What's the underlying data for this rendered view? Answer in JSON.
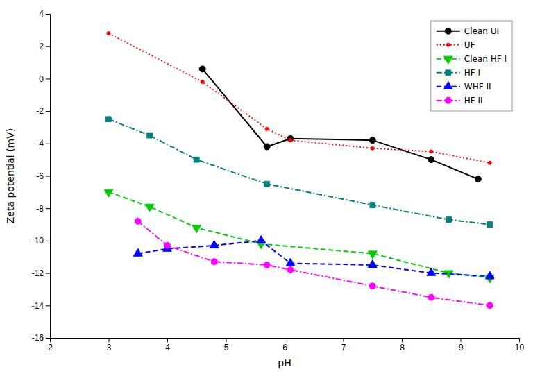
{
  "chart_data": {
    "type": "line",
    "xlabel": "pH",
    "ylabel": "Zeta potential (mV)",
    "series": [
      {
        "name": "Clean UF",
        "color": "black",
        "marker": "circle",
        "line_style": "solid",
        "x": [
          4.6,
          5.7,
          6.1,
          7.5,
          8.5,
          9.3
        ],
        "values": [
          0.6,
          -4.2,
          -3.7,
          -3.8,
          -5.0,
          -6.2
        ]
      },
      {
        "name": "UF",
        "color": "red",
        "marker": "point",
        "line_style": "dotted",
        "x": [
          3.0,
          4.6,
          5.7,
          6.1,
          7.5,
          8.5,
          9.5
        ],
        "values": [
          2.8,
          -0.2,
          -3.1,
          -3.8,
          -4.3,
          -4.5,
          -5.2
        ]
      },
      {
        "name": "Clean HF I",
        "color": "#00cc00",
        "marker": "triangle-down",
        "line_style": "dashed",
        "x": [
          3.0,
          3.7,
          4.5,
          5.6,
          7.5,
          8.8,
          9.5
        ],
        "values": [
          -7.0,
          -7.9,
          -9.2,
          -10.2,
          -10.8,
          -12.0,
          -12.3
        ]
      },
      {
        "name": "HF I",
        "color": "#008080",
        "marker": "square",
        "line_style": "dashdot",
        "x": [
          3.0,
          3.7,
          4.5,
          5.7,
          7.5,
          8.8,
          9.5
        ],
        "values": [
          -2.5,
          -3.5,
          -5.0,
          -6.5,
          -7.8,
          -8.7,
          -9.0
        ]
      },
      {
        "name": "WHF II",
        "color": "blue",
        "marker": "triangle-up",
        "line_style": "dashed",
        "x": [
          3.5,
          4.0,
          4.8,
          5.6,
          6.1,
          7.5,
          8.5,
          9.5
        ],
        "values": [
          -10.8,
          -10.5,
          -10.3,
          -10.0,
          -11.4,
          -11.5,
          -12.0,
          -12.2
        ]
      },
      {
        "name": "HF II",
        "color": "magenta",
        "marker": "circle",
        "line_style": "dashdot",
        "x": [
          3.5,
          4.0,
          4.8,
          5.7,
          6.1,
          7.5,
          8.5,
          9.5
        ],
        "values": [
          -8.8,
          -10.3,
          -11.3,
          -11.5,
          -11.8,
          -12.8,
          -13.5,
          -14.0
        ]
      }
    ],
    "xlim": [
      2,
      10
    ],
    "ylim": [
      -16,
      4
    ],
    "xticks": [
      2,
      3,
      4,
      5,
      6,
      7,
      8,
      9,
      10
    ],
    "yticks": [
      -16,
      -14,
      -12,
      -10,
      -8,
      -6,
      -4,
      -2,
      0,
      2,
      4
    ],
    "grid": false,
    "legend": "upper right"
  }
}
